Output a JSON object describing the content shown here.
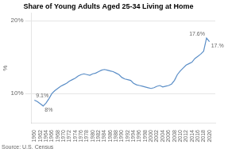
{
  "chart_data": {
    "type": "line",
    "title": "Share of Young Adults Aged 25-34 Living at Home",
    "source": "Source: U.S. Census",
    "ylabel": "%",
    "color": "#5b8ec7",
    "x": [
      1960,
      1961,
      1962,
      1963,
      1964,
      1965,
      1966,
      1967,
      1968,
      1969,
      1970,
      1971,
      1972,
      1973,
      1974,
      1975,
      1976,
      1977,
      1978,
      1979,
      1980,
      1981,
      1982,
      1983,
      1984,
      1985,
      1986,
      1987,
      1988,
      1989,
      1990,
      1991,
      1992,
      1993,
      1994,
      1995,
      1996,
      1997,
      1998,
      1999,
      2000,
      2001,
      2002,
      2003,
      2004,
      2005,
      2006,
      2007,
      2008,
      2009,
      2010,
      2011,
      2012,
      2013,
      2014,
      2015,
      2016,
      2017,
      2018,
      2019,
      2020
    ],
    "values": [
      9.1,
      8.9,
      8.6,
      8.3,
      8.7,
      9.3,
      10.0,
      10.4,
      10.7,
      11.0,
      11.2,
      11.4,
      11.7,
      11.9,
      12.1,
      12.4,
      12.6,
      12.7,
      12.6,
      12.5,
      12.7,
      12.8,
      13.0,
      13.2,
      13.3,
      13.2,
      13.1,
      13.0,
      12.8,
      12.6,
      12.2,
      12.0,
      11.9,
      11.8,
      11.4,
      11.2,
      11.1,
      11.0,
      10.9,
      10.8,
      10.7,
      10.8,
      11.0,
      11.1,
      10.9,
      11.0,
      11.1,
      11.3,
      11.8,
      12.6,
      13.1,
      13.5,
      13.9,
      14.1,
      14.3,
      14.8,
      15.1,
      15.4,
      15.8,
      17.6,
      17.1
    ],
    "xlim": [
      1959,
      2022
    ],
    "xticks": [
      1960,
      1962,
      1964,
      1966,
      1968,
      1970,
      1972,
      1974,
      1976,
      1978,
      1980,
      1982,
      1984,
      1986,
      1988,
      1990,
      1992,
      1994,
      1996,
      1998,
      2000,
      2002,
      2004,
      2006,
      2008,
      2010,
      2012,
      2014,
      2016,
      2018,
      2020
    ],
    "ylim": [
      6,
      21
    ],
    "yticks": [
      {
        "value": 10,
        "label": "10%"
      },
      {
        "value": 20,
        "label": "20%"
      }
    ],
    "grid": "y",
    "annotations": [
      {
        "x": 1960,
        "y": 9.1,
        "text": "9.1%"
      },
      {
        "x": 1963,
        "y": 8.3,
        "text": "8%"
      },
      {
        "x": 2019,
        "y": 17.6,
        "text": "17.6%"
      },
      {
        "x": 2020,
        "y": 17.1,
        "text": "17.%"
      }
    ]
  }
}
